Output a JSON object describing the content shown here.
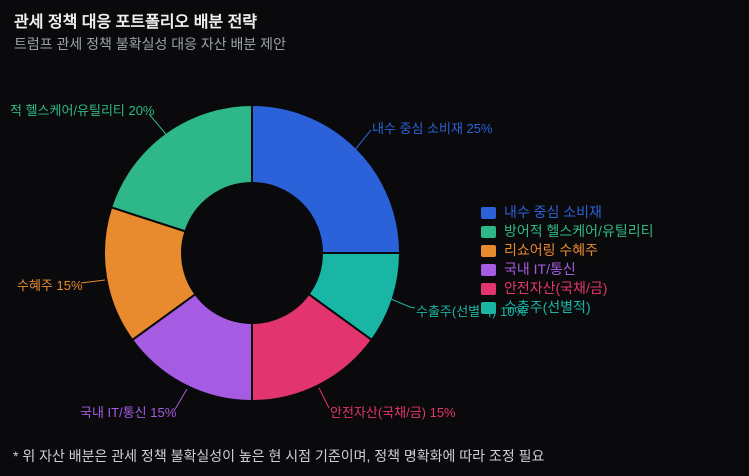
{
  "header": {
    "title": "관세 정책 대응 포트폴리오 배분 전략",
    "subtitle": "트럼프 관세 정책 불확실성 대응 자산 배분 제안"
  },
  "footer": {
    "note": "* 위 자산 배분은 관세 정책 불확실성이 높은 현 시점 기준이며, 정책 명확화에 따라 조정 필요"
  },
  "colors": {
    "background": "#0a0a0c",
    "title_text": "#f1f1f1",
    "subtitle_text": "#9aa1a9",
    "footnote_text": "#ccd0d5"
  },
  "chart_data": {
    "type": "pie",
    "donut": true,
    "hole_ratio": 0.47,
    "start": "top",
    "direction": "counterclockwise-after-first-slice",
    "legend_position": "right",
    "title": "관세 정책 대응 포트폴리오 배분 전략",
    "subtitle": "트럼프 관세 정책 불확실성 대응 자산 배분 제안",
    "unit": "%",
    "segments": [
      {
        "slug": "domestic-consumer-goods",
        "label": "내수 중심 소비재",
        "value": 25,
        "color": "#2b62d9",
        "callout_text": "내수 중심 소비재 25%"
      },
      {
        "slug": "defensive-healthcare-utilities",
        "label": "방어적 헬스케어/유틸리티",
        "value": 20,
        "color": "#2eb88a",
        "callout_text": "적 헬스케어/유틸리티 20%"
      },
      {
        "slug": "reshoring-beneficiaries",
        "label": "리쇼어링 수혜주",
        "value": 15,
        "color": "#e88a2e",
        "callout_text": "수혜주 15%"
      },
      {
        "slug": "domestic-it-telecom",
        "label": "국내 IT/통신",
        "value": 15,
        "color": "#a65ce2",
        "callout_text": "국내 IT/통신 15%"
      },
      {
        "slug": "safe-assets-bonds-gold",
        "label": "안전자산(국채/금)",
        "value": 15,
        "color": "#e23570",
        "callout_text": "안전자산(국채/금) 15%"
      },
      {
        "slug": "selective-exporters",
        "label": "수출주(선별적)",
        "value": 10,
        "color": "#19b5a5",
        "callout_text": "수출주(선별적) 10%"
      }
    ]
  }
}
